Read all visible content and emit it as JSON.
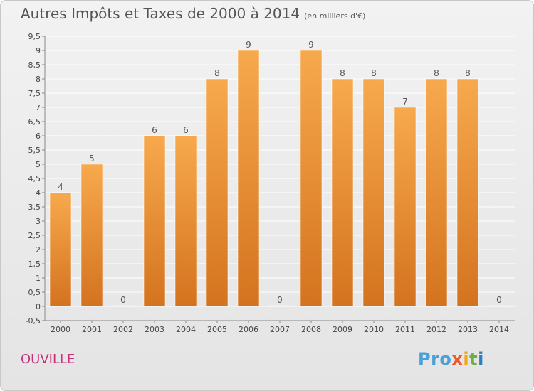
{
  "header": {
    "title": "Autres Impôts et Taxes de 2000 à 2014",
    "subtitle": "(en milliers d'€)"
  },
  "footer": {
    "place": "OUVILLE",
    "logo_parts": [
      "Pro",
      "x",
      "i",
      "t",
      "i"
    ],
    "logo_colors": [
      "#4aa0d8",
      "#e85a2a",
      "#f2a51a",
      "#6ab23c",
      "#2b7fc0"
    ]
  },
  "colors": {
    "bar_top": "#f7a94d",
    "bar_bottom": "#d4731f",
    "grid": "#ffffff",
    "axis": "#888888",
    "title": "#555555",
    "place": "#c8317a"
  },
  "chart_data": {
    "type": "bar",
    "title": "Autres Impôts et Taxes de 2000 à 2014",
    "subtitle": "(en milliers d'€)",
    "categories": [
      "2000",
      "2001",
      "2002",
      "2003",
      "2004",
      "2005",
      "2006",
      "2007",
      "2008",
      "2009",
      "2010",
      "2011",
      "2012",
      "2013",
      "2014"
    ],
    "values": [
      4,
      5,
      0,
      6,
      6,
      8,
      9,
      0,
      9,
      8,
      8,
      7,
      8,
      8,
      0
    ],
    "data_labels": [
      "4",
      "5",
      "0",
      "6",
      "6",
      "8",
      "9",
      "0",
      "9",
      "8",
      "8",
      "7",
      "8",
      "8",
      "0"
    ],
    "ylim": [
      -0.5,
      9.5
    ],
    "yticks": [
      -0.5,
      0,
      0.5,
      1,
      1.5,
      2,
      2.5,
      3,
      3.5,
      4,
      4.5,
      5,
      5.5,
      6,
      6.5,
      7,
      7.5,
      8,
      8.5,
      9,
      9.5
    ],
    "ytick_labels": [
      "-0,5",
      "0",
      "0,5",
      "1",
      "1,5",
      "2",
      "2,5",
      "3",
      "3,5",
      "4",
      "4,5",
      "5",
      "5,5",
      "6",
      "6,5",
      "7",
      "7,5",
      "8",
      "8,5",
      "9",
      "9,5"
    ],
    "grid": true,
    "xlabel": "",
    "ylabel": ""
  }
}
